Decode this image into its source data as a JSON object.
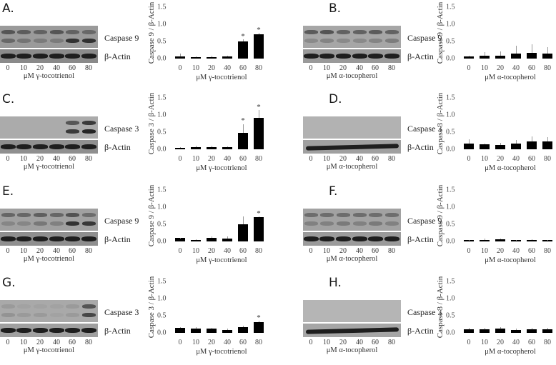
{
  "figure": {
    "concentrations": [
      "0",
      "10",
      "20",
      "40",
      "60",
      "80"
    ],
    "y_ticks": [
      "1.5",
      "1.0",
      "0.5",
      "0.0"
    ],
    "beta_actin_label": "β-Actin"
  },
  "panels": [
    {
      "letter": "A.",
      "protein": "Caspase 9",
      "treatment": "μM γ-tocotrienol",
      "ylabel": "Caspase 9 / β-Actin"
    },
    {
      "letter": "B.",
      "protein": "Caspase 9",
      "treatment": "μM α-tocopherol",
      "ylabel": "Caspase 9 / β-Actin"
    },
    {
      "letter": "C.",
      "protein": "Caspase 3",
      "treatment": "μM γ-tocotrienol",
      "ylabel": "Caspase 3 / β-Actin"
    },
    {
      "letter": "D.",
      "protein": "Caspase 3",
      "treatment": "μM α-tocopherol",
      "ylabel": "Caspase 3 / β-Actin"
    },
    {
      "letter": "E.",
      "protein": "Caspase 9",
      "treatment": "μM γ-tocotrienol",
      "ylabel": "Caspase 9 / β-Actin"
    },
    {
      "letter": "F.",
      "protein": "Caspase 9",
      "treatment": "μM α-tocopherol",
      "ylabel": "Caspase 9 / β-Actin"
    },
    {
      "letter": "G.",
      "protein": "Caspase 3",
      "treatment": "μM γ-tocotrienol",
      "ylabel": "Caspase 3 / β-Actin"
    },
    {
      "letter": "H.",
      "protein": "Caspase 3",
      "treatment": "μM α-tocopherol",
      "ylabel": "Caspase 3 / β-Actin"
    }
  ],
  "chart_data": [
    {
      "panel": "A",
      "type": "bar",
      "title": "",
      "categories": [
        "0",
        "10",
        "20",
        "40",
        "60",
        "80"
      ],
      "values": [
        0.07,
        0.03,
        0.05,
        0.06,
        0.5,
        0.71
      ],
      "errors": [
        0.07,
        0.03,
        0.04,
        0.02,
        0.06,
        0.05
      ],
      "significant": [
        false,
        false,
        false,
        false,
        true,
        true
      ],
      "xlabel": "μM γ-tocotrienol",
      "ylabel": "Caspase 9 / β-Actin",
      "ylim": [
        0,
        1.5
      ],
      "yticks": [
        0.0,
        0.5,
        1.0,
        1.5
      ],
      "grid": false
    },
    {
      "panel": "B",
      "type": "bar",
      "title": "",
      "categories": [
        "0",
        "10",
        "20",
        "40",
        "60",
        "80"
      ],
      "values": [
        0.06,
        0.08,
        0.08,
        0.15,
        0.17,
        0.15
      ],
      "errors": [
        0.03,
        0.1,
        0.13,
        0.22,
        0.25,
        0.18
      ],
      "significant": [
        false,
        false,
        false,
        false,
        false,
        false
      ],
      "xlabel": "μM α-tocopherol",
      "ylabel": "Caspase 9 / β-Actin",
      "ylim": [
        0,
        1.5
      ],
      "yticks": [
        0.0,
        0.5,
        1.0,
        1.5
      ],
      "grid": false
    },
    {
      "panel": "C",
      "type": "bar",
      "title": "",
      "categories": [
        "0",
        "10",
        "20",
        "40",
        "60",
        "80"
      ],
      "values": [
        0.04,
        0.06,
        0.07,
        0.06,
        0.47,
        0.92
      ],
      "errors": [
        0.02,
        0.04,
        0.04,
        0.02,
        0.27,
        0.22
      ],
      "significant": [
        false,
        false,
        false,
        false,
        true,
        true
      ],
      "xlabel": "μM γ-tocotrienol",
      "ylabel": "Caspase 3 / β-Actin",
      "ylim": [
        0,
        1.5
      ],
      "yticks": [
        0.0,
        0.5,
        1.0,
        1.5
      ],
      "grid": false
    },
    {
      "panel": "D",
      "type": "bar",
      "title": "",
      "categories": [
        "0",
        "10",
        "20",
        "40",
        "60",
        "80"
      ],
      "values": [
        0.16,
        0.14,
        0.13,
        0.16,
        0.22,
        0.22
      ],
      "errors": [
        0.13,
        0.02,
        0.05,
        0.11,
        0.16,
        0.14
      ],
      "significant": [
        false,
        false,
        false,
        false,
        false,
        false
      ],
      "xlabel": "μM α-tocopherol",
      "ylabel": "Caspase 3 / β-Actin",
      "ylim": [
        0,
        1.5
      ],
      "yticks": [
        0.0,
        0.5,
        1.0,
        1.5
      ],
      "grid": false
    },
    {
      "panel": "E",
      "type": "bar",
      "title": "",
      "categories": [
        "0",
        "10",
        "20",
        "40",
        "60",
        "80"
      ],
      "values": [
        0.1,
        0.05,
        0.1,
        0.08,
        0.51,
        0.7
      ],
      "errors": [
        0.01,
        0.01,
        0.05,
        0.06,
        0.22,
        0.03
      ],
      "significant": [
        false,
        false,
        false,
        false,
        false,
        true
      ],
      "xlabel": "μM γ-tocotrienol",
      "ylabel": "Caspase 9 / β-Actin",
      "ylim": [
        0,
        1.5
      ],
      "yticks": [
        0.0,
        0.5,
        1.0,
        1.5
      ],
      "grid": false
    },
    {
      "panel": "F",
      "type": "bar",
      "title": "",
      "categories": [
        "0",
        "10",
        "20",
        "40",
        "60",
        "80"
      ],
      "values": [
        0.03,
        0.04,
        0.07,
        0.03,
        0.05,
        0.03
      ],
      "errors": [
        0.01,
        0.04,
        0.02,
        0.01,
        0.02,
        0.01
      ],
      "significant": [
        false,
        false,
        false,
        false,
        false,
        false
      ],
      "xlabel": "μM α-tocopherol",
      "ylabel": "Caspase 9 / β-Actin",
      "ylim": [
        0,
        1.5
      ],
      "yticks": [
        0.0,
        0.5,
        1.0,
        1.5
      ],
      "grid": false
    },
    {
      "panel": "G",
      "type": "bar",
      "title": "",
      "categories": [
        "0",
        "10",
        "20",
        "40",
        "60",
        "80"
      ],
      "values": [
        0.14,
        0.12,
        0.12,
        0.09,
        0.17,
        0.31
      ],
      "errors": [
        0.02,
        0.04,
        0.03,
        0.04,
        0.03,
        0.04
      ],
      "significant": [
        false,
        false,
        false,
        false,
        false,
        true
      ],
      "xlabel": "μM γ-tocotrienol",
      "ylabel": "Caspase 3 / β-Actin",
      "ylim": [
        0,
        1.5
      ],
      "yticks": [
        0.0,
        0.5,
        1.0,
        1.5
      ],
      "grid": false
    },
    {
      "panel": "H",
      "type": "bar",
      "title": "",
      "categories": [
        "0",
        "10",
        "20",
        "40",
        "60",
        "80"
      ],
      "values": [
        0.11,
        0.11,
        0.13,
        0.08,
        0.11,
        0.11
      ],
      "errors": [
        0.04,
        0.04,
        0.03,
        0.04,
        0.04,
        0.04
      ],
      "significant": [
        false,
        false,
        false,
        false,
        false,
        false
      ],
      "xlabel": "μM α-tocopherol",
      "ylabel": "Caspase 3 / β-Actin",
      "ylim": [
        0,
        1.5
      ],
      "yticks": [
        0.0,
        0.5,
        1.0,
        1.5
      ],
      "grid": false
    }
  ]
}
